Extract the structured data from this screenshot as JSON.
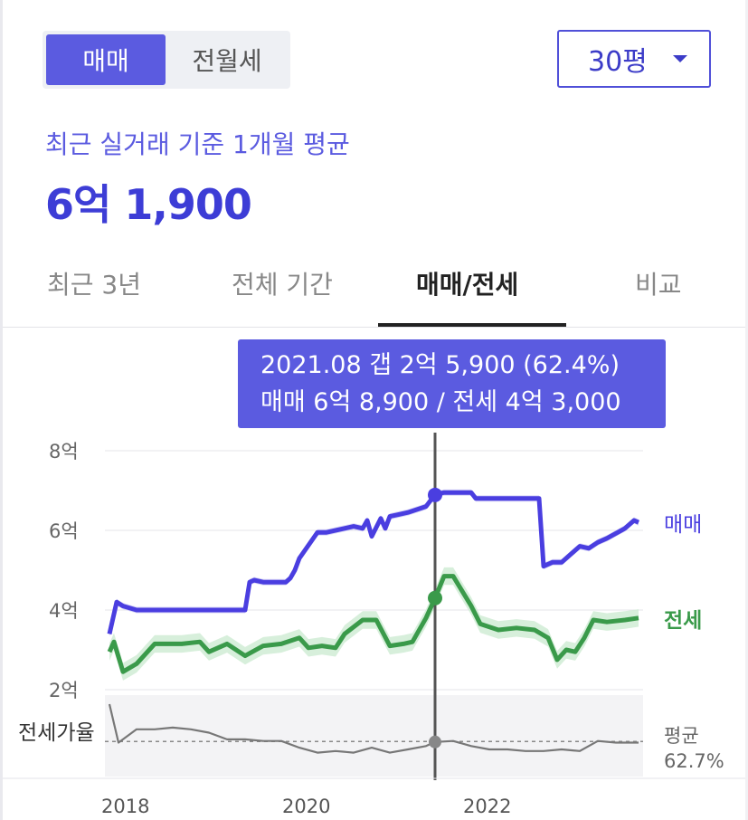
{
  "toggle": {
    "options": [
      "매매",
      "전월세"
    ],
    "selected": "매매"
  },
  "area_select": {
    "value": "30평"
  },
  "summary": {
    "subtitle": "최근 실거래 기준 1개월 평균",
    "price": "6억 1,900"
  },
  "tabs": [
    {
      "label": "최근 3년"
    },
    {
      "label": "전체 기간"
    },
    {
      "label": "매매/전세",
      "active": true
    },
    {
      "label": "비교"
    }
  ],
  "tooltip": {
    "line1": "2021.08  갭 2억 5,900 (62.4%)",
    "line2": "매매 6억 8,900 / 전세 4억 3,000"
  },
  "colors": {
    "sale": "#4a3ee0",
    "jeonse": "#3a9a4a",
    "ratio": "#777777",
    "accent": "#5b5be0",
    "band_sale": "#cfcdf5",
    "band_jeonse": "#cdebd2"
  },
  "chart_data": {
    "type": "line",
    "y_ticks": [
      "8억",
      "6억",
      "4억",
      "2억"
    ],
    "y_tick_values": [
      8,
      6,
      4,
      2
    ],
    "ylim": [
      2,
      8
    ],
    "x_ticks": [
      "2018",
      "2020",
      "2022"
    ],
    "x_tick_values": [
      2018.0,
      2020.0,
      2022.0
    ],
    "xlim": [
      2017.95,
      2023.9
    ],
    "grid": true,
    "legend_placement": "right",
    "highlight": {
      "x": 2021.6,
      "sale": 6.89,
      "jeonse": 4.3
    },
    "series": [
      {
        "name": "매매",
        "x": [
          2018.0,
          2018.08,
          2018.15,
          2018.3,
          2018.5,
          2019.0,
          2019.5,
          2019.55,
          2019.6,
          2019.7,
          2019.95,
          2020.0,
          2020.05,
          2020.1,
          2020.3,
          2020.4,
          2020.6,
          2020.7,
          2020.8,
          2020.85,
          2020.9,
          2021.0,
          2021.05,
          2021.1,
          2021.2,
          2021.3,
          2021.5,
          2021.6,
          2021.7,
          2021.9,
          2022.0,
          2022.05,
          2022.2,
          2022.5,
          2022.75,
          2022.8,
          2022.9,
          2023.0,
          2023.1,
          2023.2,
          2023.3,
          2023.4,
          2023.5,
          2023.7,
          2023.8,
          2023.85
        ],
        "values": [
          3.4,
          4.2,
          4.1,
          4.0,
          4.0,
          4.0,
          4.0,
          4.7,
          4.75,
          4.7,
          4.7,
          4.8,
          5.0,
          5.3,
          5.95,
          5.95,
          6.05,
          6.1,
          6.05,
          6.25,
          5.85,
          6.3,
          6.05,
          6.35,
          6.4,
          6.45,
          6.6,
          6.9,
          6.95,
          6.95,
          6.95,
          6.8,
          6.8,
          6.8,
          6.8,
          5.1,
          5.2,
          5.2,
          5.4,
          5.6,
          5.55,
          5.7,
          5.8,
          6.05,
          6.25,
          6.2
        ]
      },
      {
        "name": "전세",
        "x": [
          2018.0,
          2018.05,
          2018.15,
          2018.3,
          2018.5,
          2018.8,
          2019.0,
          2019.1,
          2019.3,
          2019.5,
          2019.7,
          2019.9,
          2020.1,
          2020.2,
          2020.35,
          2020.5,
          2020.6,
          2020.8,
          2020.95,
          2021.1,
          2021.25,
          2021.35,
          2021.5,
          2021.6,
          2021.7,
          2021.8,
          2022.0,
          2022.1,
          2022.3,
          2022.5,
          2022.7,
          2022.85,
          2022.95,
          2023.05,
          2023.15,
          2023.25,
          2023.35,
          2023.5,
          2023.7,
          2023.85
        ],
        "values": [
          2.95,
          3.2,
          2.45,
          2.65,
          3.15,
          3.15,
          3.2,
          2.95,
          3.15,
          2.85,
          3.1,
          3.15,
          3.3,
          3.05,
          3.1,
          3.05,
          3.4,
          3.75,
          3.75,
          3.1,
          3.15,
          3.2,
          3.8,
          4.3,
          4.85,
          4.85,
          4.1,
          3.65,
          3.5,
          3.55,
          3.5,
          3.3,
          2.75,
          3.0,
          2.95,
          3.3,
          3.75,
          3.7,
          3.75,
          3.8
        ]
      }
    ],
    "ratio": {
      "label": "전세가율",
      "average_label": "평균",
      "average_value": "62.7%",
      "average": 62.7,
      "ylim": [
        45,
        85
      ],
      "x": [
        2018.0,
        2018.1,
        2018.3,
        2018.5,
        2018.7,
        2018.9,
        2019.1,
        2019.3,
        2019.5,
        2019.7,
        2019.9,
        2020.1,
        2020.3,
        2020.5,
        2020.7,
        2020.9,
        2021.1,
        2021.3,
        2021.5,
        2021.6,
        2021.8,
        2022.0,
        2022.2,
        2022.4,
        2022.6,
        2022.8,
        2023.0,
        2023.2,
        2023.4,
        2023.6,
        2023.85
      ],
      "values": [
        85,
        62,
        70,
        70,
        71,
        70,
        68,
        64,
        64,
        63,
        63,
        59,
        56,
        57,
        56,
        59,
        56,
        58,
        60,
        62.4,
        63,
        60,
        58,
        58,
        57,
        57,
        58,
        57,
        63,
        62,
        62
      ]
    }
  }
}
